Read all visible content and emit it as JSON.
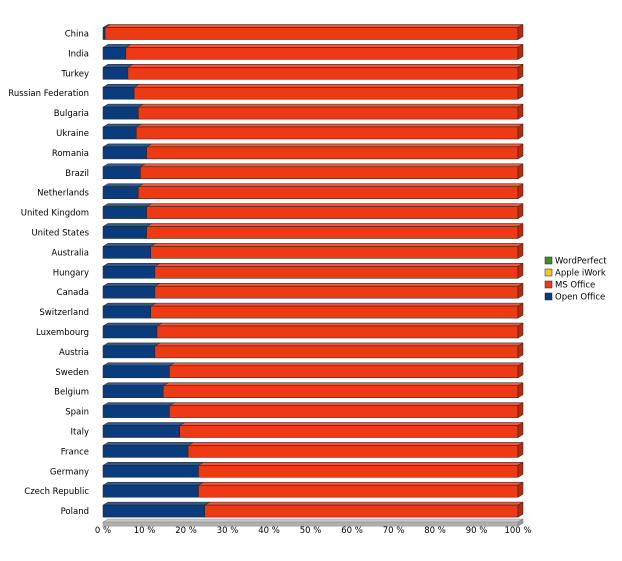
{
  "chart_data": {
    "type": "bar",
    "orientation": "horizontal",
    "stacked": "percent",
    "categories": [
      "China",
      "India",
      "Turkey",
      "Russian Federation",
      "Bulgaria",
      "Ukraine",
      "Romania",
      "Brazil",
      "Netherlands",
      "United Kingdom",
      "United States",
      "Australia",
      "Hungary",
      "Canada",
      "Switzerland",
      "Luxembourg",
      "Austria",
      "Sweden",
      "Belgium",
      "Spain",
      "Italy",
      "France",
      "Germany",
      "Czech Republic",
      "Poland"
    ],
    "series": [
      {
        "name": "Open Office",
        "color": "#0a3c7d",
        "values": [
          0.5,
          5.5,
          6,
          7.5,
          8.5,
          8,
          10.5,
          9,
          8.5,
          10.5,
          10.5,
          11.5,
          12.5,
          12.5,
          11.5,
          13,
          12.5,
          16,
          14.5,
          16,
          18.5,
          20.5,
          23,
          23,
          24.5
        ]
      },
      {
        "name": "MS Office",
        "color": "#ee3a14",
        "values": [
          99.5,
          94.5,
          94,
          92.5,
          91.5,
          92,
          89.5,
          91,
          91.5,
          89.5,
          89.5,
          88.5,
          87.5,
          87.5,
          88.5,
          87,
          87.5,
          84,
          85.5,
          84,
          81.5,
          79.5,
          77,
          77,
          75.5
        ]
      },
      {
        "name": "Apple iWork",
        "color": "#f5c32c",
        "values": [
          0,
          0,
          0,
          0,
          0,
          0,
          0,
          0,
          0,
          0,
          0,
          0,
          0,
          0,
          0,
          0,
          0,
          0,
          0,
          0,
          0,
          0,
          0,
          0,
          0
        ]
      },
      {
        "name": "WordPerfect",
        "color": "#3f8f2b",
        "values": [
          0,
          0,
          0,
          0,
          0,
          0,
          0,
          0,
          0,
          0,
          0,
          0,
          0,
          0,
          0,
          0,
          0,
          0,
          0,
          0,
          0,
          0,
          0,
          0,
          0
        ]
      }
    ],
    "legend_order": [
      "WordPerfect",
      "Apple iWork",
      "MS Office",
      "Open Office"
    ],
    "xticks": [
      "0 %",
      "10 %",
      "20 %",
      "30 %",
      "40 %",
      "50 %",
      "60 %",
      "70 %",
      "80 %",
      "90 %",
      "100 %"
    ],
    "xlim": [
      0,
      100
    ],
    "grid": false,
    "legend_position": "right"
  }
}
